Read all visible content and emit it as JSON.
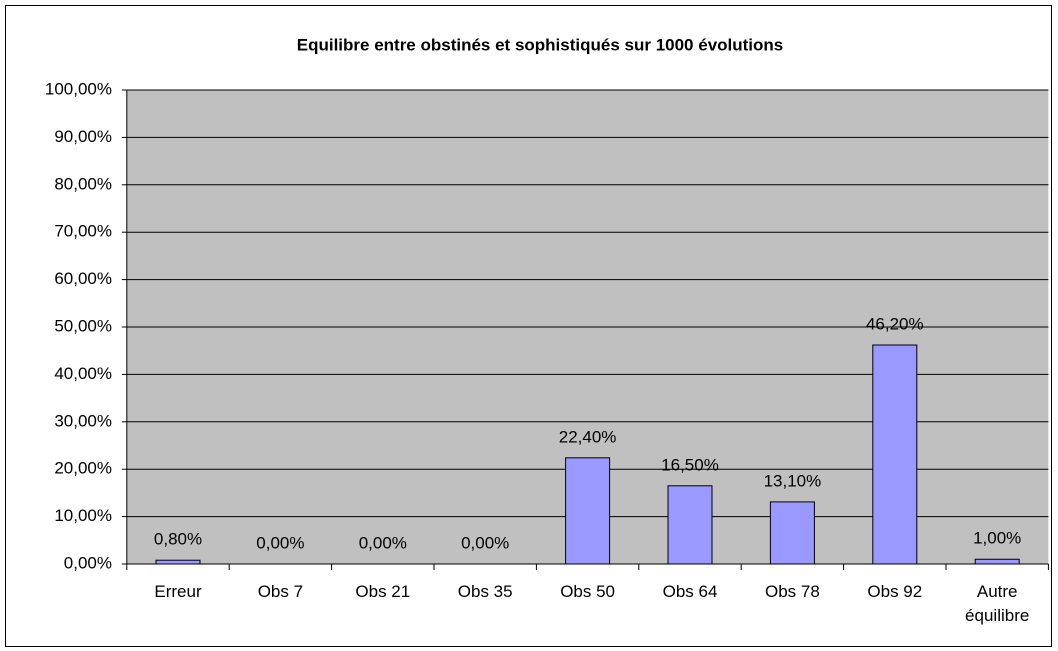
{
  "chart_data": {
    "type": "bar",
    "title": "Equilibre entre obstinés et sophistiqués sur 1000 évolutions",
    "categories": [
      "Erreur",
      "Obs 7",
      "Obs 21",
      "Obs 35",
      "Obs 50",
      "Obs 64",
      "Obs 78",
      "Obs 92",
      "Autre équilibre"
    ],
    "values": [
      0.8,
      0,
      0,
      0,
      22.4,
      16.5,
      13.1,
      46.2,
      1.0
    ],
    "value_labels": [
      "0,80%",
      "0,00%",
      "0,00%",
      "0,00%",
      "22,40%",
      "16,50%",
      "13,10%",
      "46,20%",
      "1,00%"
    ],
    "color": "#9999ff",
    "ylim": [
      0,
      100
    ],
    "yticks": [
      {
        "value": 0,
        "label": "0,00%"
      },
      {
        "value": 10,
        "label": "10,00%"
      },
      {
        "value": 20,
        "label": "20,00%"
      },
      {
        "value": 30,
        "label": "30,00%"
      },
      {
        "value": 40,
        "label": "40,00%"
      },
      {
        "value": 50,
        "label": "50,00%"
      },
      {
        "value": 60,
        "label": "60,00%"
      },
      {
        "value": 70,
        "label": "70,00%"
      },
      {
        "value": 80,
        "label": "80,00%"
      },
      {
        "value": 90,
        "label": "90,00%"
      },
      {
        "value": 100,
        "label": "100,00%"
      }
    ],
    "grid": true
  }
}
